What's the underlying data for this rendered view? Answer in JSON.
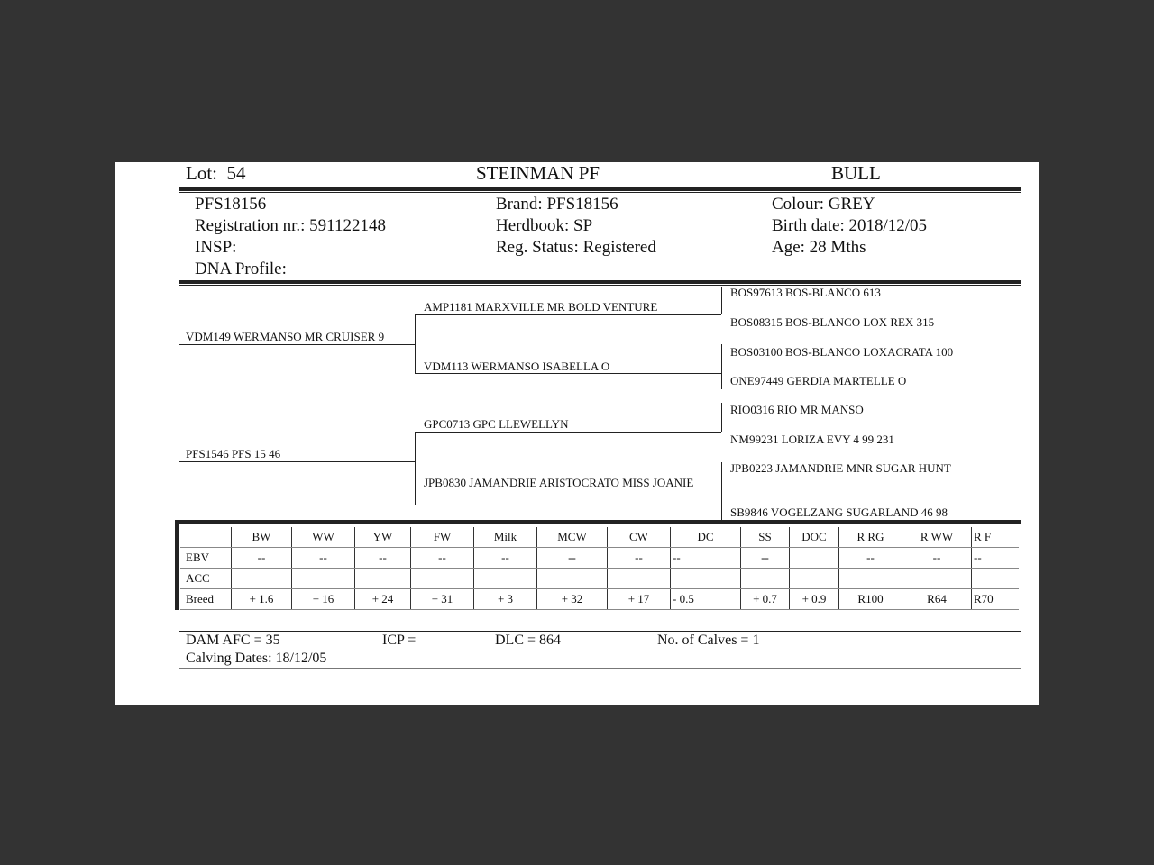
{
  "header": {
    "lot_label": "Lot:",
    "lot": "54",
    "name": "STEINMAN PF",
    "sex": "BULL"
  },
  "details": {
    "id": "PFS18156",
    "registration": "Registration nr.: 591122148",
    "insp": "INSP:",
    "dna": "DNA Profile:",
    "brand": "Brand:  PFS18156",
    "herdbook": "Herdbook: SP",
    "reg_status": "Reg. Status: Registered",
    "colour": "Colour:  GREY",
    "birth": "Birth date:  2018/12/05",
    "age": "Age: 28 Mths"
  },
  "pedigree": {
    "sire": "VDM149 WERMANSO MR CRUISER 9",
    "dam": "PFS1546 PFS 15 46",
    "ss": "AMP1181 MARXVILLE MR BOLD VENTURE",
    "sd": "VDM113 WERMANSO ISABELLA O",
    "ds": "GPC0713 GPC LLEWELLYN",
    "dd": "JPB0830 JAMANDRIE ARISTOCRATO MISS JOANIE",
    "sss": "BOS97613 BOS-BLANCO 613",
    "ssd": "BOS08315 BOS-BLANCO LOX REX 315",
    "sds": "BOS03100 BOS-BLANCO LOXACRATA 100",
    "sdd": "ONE97449 GERDIA MARTELLE O",
    "dss": "RIO0316 RIO MR MANSO",
    "dsd": "NM99231 LORIZA EVY 4 99 231",
    "dds": "JPB0223 JAMANDRIE MNR SUGAR HUNT",
    "ddd": "SB9846 VOGELZANG SUGARLAND 46 98"
  },
  "ebv_table": {
    "columns": [
      "",
      "BW",
      "WW",
      "YW",
      "FW",
      "Milk",
      "MCW",
      "CW",
      "DC",
      "SS",
      "DOC",
      "R RG",
      "R WW",
      "R F"
    ],
    "rows": [
      [
        "EBV",
        "--",
        "--",
        "--",
        "--",
        "--",
        "--",
        "--",
        "--",
        "--",
        "",
        "--",
        "--",
        "--"
      ],
      [
        "ACC",
        "",
        "",
        "",
        "",
        "",
        "",
        "",
        "",
        "",
        "",
        "",
        "",
        ""
      ],
      [
        "Breed",
        "+ 1.6",
        "+ 16",
        "+ 24",
        "+ 31",
        "+ 3",
        "+ 32",
        "+ 17",
        "- 0.5",
        "+ 0.7",
        "+ 0.9",
        "R100",
        "R64",
        "R70"
      ]
    ]
  },
  "footer": {
    "dam_afc": "DAM AFC = 35",
    "icp": "ICP =",
    "dlc": "DLC = 864",
    "calves": "No. of Calves = 1",
    "calving_dates": "Calving Dates: 18/12/05"
  }
}
